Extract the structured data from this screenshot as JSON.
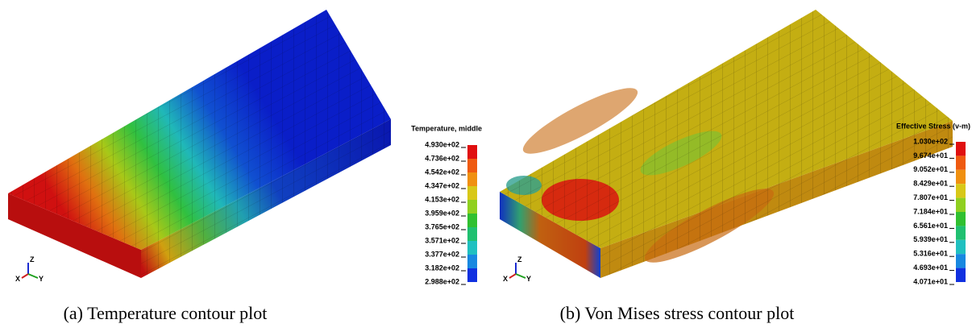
{
  "figures": [
    {
      "legend": {
        "title": "Temperature, middle",
        "labels": [
          "4.930e+02",
          "4.736e+02",
          "4.542e+02",
          "4.347e+02",
          "4.153e+02",
          "3.959e+02",
          "3.765e+02",
          "3.571e+02",
          "3.377e+02",
          "3.182e+02",
          "2.988e+02"
        ]
      },
      "axes": {
        "z": "Z",
        "x": "X",
        "y": "Y"
      },
      "caption": "(a) Temperature contour plot"
    },
    {
      "legend": {
        "title": "Effective Stress (v-m)",
        "labels": [
          "1.030e+02",
          "9.674e+01",
          "9.052e+01",
          "8.429e+01",
          "7.807e+01",
          "7.184e+01",
          "6.561e+01",
          "5.939e+01",
          "5.316e+01",
          "4.693e+01",
          "4.071e+01"
        ]
      },
      "axes": {
        "z": "Z",
        "x": "X",
        "y": "Y"
      },
      "caption": "(b) Von Mises stress contour plot"
    }
  ]
}
